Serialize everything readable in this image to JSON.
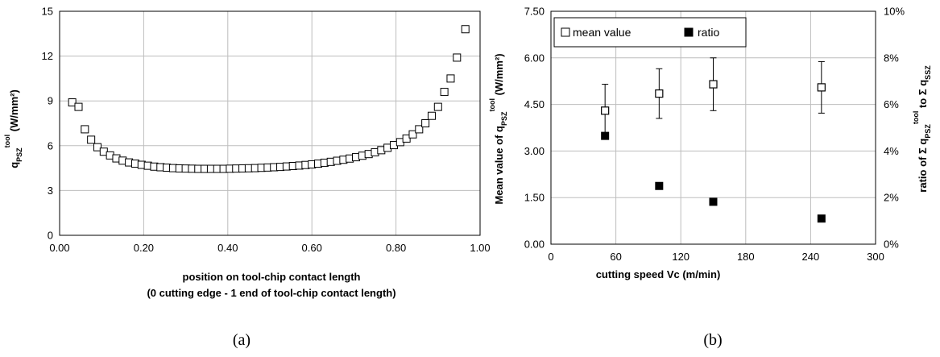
{
  "chart_data": [
    {
      "type": "scatter",
      "panel_label": "(a)",
      "title": "",
      "ylabel": {
        "main": "q",
        "sub": "PSZ",
        "sup": "tool",
        "unit": " (W/mm²)"
      },
      "xlabel_lines": [
        "position on tool-chip contact length",
        "(0 cutting edge - 1 end of tool-chip contact length)"
      ],
      "xlim": [
        0,
        1
      ],
      "ylim": [
        0,
        15
      ],
      "x_ticks": [
        0,
        0.2,
        0.4,
        0.6,
        0.8,
        1.0
      ],
      "x_tick_labels": [
        "0.00",
        "0.20",
        "0.40",
        "0.60",
        "0.80",
        "1.00"
      ],
      "y_ticks": [
        0,
        3,
        6,
        9,
        12,
        15
      ],
      "y_tick_labels": [
        "0",
        "3",
        "6",
        "9",
        "12",
        "15"
      ],
      "grid": true,
      "series": [
        {
          "marker": "open-square",
          "x": [
            0.03,
            0.045,
            0.06,
            0.075,
            0.09,
            0.105,
            0.12,
            0.135,
            0.15,
            0.165,
            0.18,
            0.195,
            0.21,
            0.225,
            0.24,
            0.255,
            0.27,
            0.285,
            0.3,
            0.315,
            0.33,
            0.345,
            0.36,
            0.375,
            0.39,
            0.405,
            0.42,
            0.435,
            0.45,
            0.465,
            0.48,
            0.495,
            0.51,
            0.525,
            0.54,
            0.555,
            0.57,
            0.585,
            0.6,
            0.615,
            0.63,
            0.645,
            0.66,
            0.675,
            0.69,
            0.705,
            0.72,
            0.735,
            0.75,
            0.765,
            0.78,
            0.795,
            0.81,
            0.825,
            0.84,
            0.855,
            0.87,
            0.885,
            0.9,
            0.915,
            0.93,
            0.945,
            0.965
          ],
          "y": [
            8.9,
            8.6,
            7.1,
            6.4,
            5.9,
            5.6,
            5.35,
            5.15,
            5.0,
            4.88,
            4.8,
            4.72,
            4.66,
            4.6,
            4.56,
            4.53,
            4.5,
            4.48,
            4.47,
            4.46,
            4.45,
            4.45,
            4.45,
            4.45,
            4.45,
            4.46,
            4.47,
            4.48,
            4.49,
            4.5,
            4.52,
            4.54,
            4.56,
            4.58,
            4.61,
            4.64,
            4.67,
            4.71,
            4.75,
            4.8,
            4.86,
            4.92,
            4.99,
            5.06,
            5.14,
            5.23,
            5.33,
            5.44,
            5.56,
            5.7,
            5.86,
            6.04,
            6.24,
            6.48,
            6.76,
            7.1,
            7.5,
            8.0,
            8.6,
            9.6,
            10.5,
            11.9,
            13.8
          ]
        }
      ]
    },
    {
      "type": "scatter",
      "panel_label": "(b)",
      "title": "",
      "xlabel": "cutting speed Vc (m/min)",
      "ylabel_left": {
        "main": "Mean value of q",
        "sub": "PSZ",
        "sup": "tool",
        "unit": " (W/mm²)"
      },
      "ylabel_right": {
        "p1": "ratio of Σ q",
        "sub1": "PSZ",
        "sup1": "tool",
        "p2": " to Σ q",
        "sub2": "SSZ"
      },
      "xlim": [
        0,
        300
      ],
      "ylim_left": [
        0,
        7.5
      ],
      "ylim_right": [
        0,
        10
      ],
      "x_ticks": [
        0,
        60,
        120,
        180,
        240,
        300
      ],
      "x_tick_labels": [
        "0",
        "60",
        "120",
        "180",
        "240",
        "300"
      ],
      "y_ticks_left": [
        0,
        1.5,
        3,
        4.5,
        6,
        7.5
      ],
      "y_tick_labels_left": [
        "0.00",
        "1.50",
        "3.00",
        "4.50",
        "6.00",
        "7.50"
      ],
      "y_ticks_right": [
        0,
        2,
        4,
        6,
        8,
        10
      ],
      "y_tick_labels_right": [
        "0%",
        "2%",
        "4%",
        "6%",
        "8%",
        "10%"
      ],
      "grid": true,
      "legend_position": "top-left",
      "series": [
        {
          "name": "mean value",
          "marker": "open-square",
          "axis": "left",
          "x": [
            50,
            100,
            150,
            250
          ],
          "y": [
            4.3,
            4.85,
            5.15,
            5.05
          ],
          "error": [
            0.85,
            0.8,
            0.85,
            0.83
          ]
        },
        {
          "name": "ratio",
          "marker": "filled-square",
          "axis": "right",
          "x": [
            50,
            100,
            150,
            250
          ],
          "y": [
            4.65,
            2.5,
            1.82,
            1.1
          ]
        }
      ]
    }
  ]
}
